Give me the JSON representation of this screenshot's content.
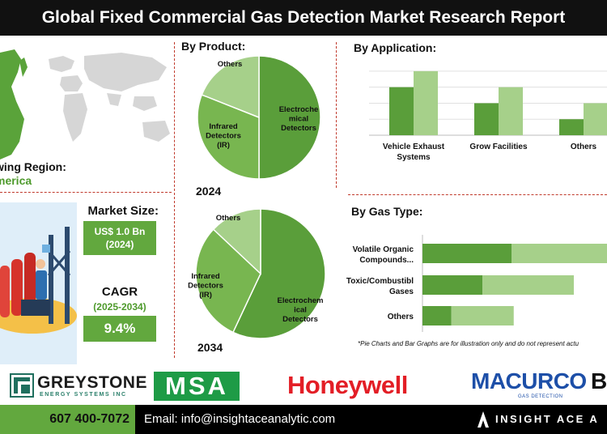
{
  "header": {
    "title": "Global Fixed Commercial Gas Detection Market Research Report"
  },
  "region": {
    "label": "wing Region:",
    "value": "merica"
  },
  "market_size": {
    "label": "Market Size:",
    "value": "US$ 1.0 Bn",
    "year": "(2024)"
  },
  "cagr": {
    "label": "CAGR",
    "period": "(2025-2034)",
    "value": "9.4%"
  },
  "sections": {
    "by_product": "By Product:",
    "by_application": "By Application:",
    "by_gas_type": "By Gas Type:"
  },
  "colors": {
    "dark_green": "#5a9e3a",
    "mid_green": "#78b650",
    "light_green": "#a6d08a",
    "accent_green": "#62a83e",
    "divider_red": "#c0392b"
  },
  "chart_data": [
    {
      "type": "pie",
      "year_label": "2024",
      "slices": [
        {
          "label_lines": [
            "Electroche",
            "mical",
            "Detectors"
          ],
          "value": 50,
          "color": "#5a9e3a"
        },
        {
          "label_lines": [
            "Infrared",
            "Detectors",
            "(IR)"
          ],
          "value": 31,
          "color": "#78b650"
        },
        {
          "label_lines": [
            "Others"
          ],
          "value": 19,
          "color": "#a6d08a"
        }
      ]
    },
    {
      "type": "pie",
      "year_label": "2034",
      "slices": [
        {
          "label_lines": [
            "Electrochem",
            "ical",
            "Detectors"
          ],
          "value": 57,
          "color": "#5a9e3a"
        },
        {
          "label_lines": [
            "Infrared",
            "Detectors",
            "(IR)"
          ],
          "value": 30,
          "color": "#78b650"
        },
        {
          "label_lines": [
            "Others"
          ],
          "value": 13,
          "color": "#a6d08a"
        }
      ]
    },
    {
      "type": "bar",
      "orientation": "vertical",
      "categories": [
        [
          "Vehicle Exhaust",
          "Systems"
        ],
        [
          "Grow Facilities"
        ],
        [
          "Others"
        ]
      ],
      "series": [
        {
          "values": [
            6.0,
            4.0,
            2.0
          ],
          "color": "#5a9e3a"
        },
        {
          "values": [
            8.0,
            6.0,
            4.0
          ],
          "color": "#a6d08a"
        }
      ],
      "ylim": [
        0,
        9
      ]
    },
    {
      "type": "bar",
      "orientation": "horizontal-stacked",
      "categories": [
        [
          "Volatile Organic",
          "Compounds..."
        ],
        [
          "Toxic/Combustibl",
          "Gases"
        ],
        [
          "Others"
        ]
      ],
      "series": [
        {
          "values": [
            4.0,
            2.7,
            1.3
          ],
          "color": "#5a9e3a"
        },
        {
          "values": [
            5.4,
            4.1,
            2.8
          ],
          "color": "#a6d08a"
        }
      ],
      "xlim": [
        0,
        10
      ]
    }
  ],
  "disclaimer": "*Pie Charts and Bar Graphs are for illustration only and do not represent actu",
  "logos": {
    "greystone_main": "GREYSTONE",
    "greystone_sub": "ENERGY SYSTEMS INC",
    "msa": "MSA",
    "honeywell": "Honeywell",
    "macurco": "MACURCO",
    "macurco_sub": "GAS DETECTION",
    "cut": "B"
  },
  "footer": {
    "phone": "607 400-7072",
    "email": "Email: info@insightaceanalytic.com",
    "brand": "INSIGHT ACE A"
  }
}
